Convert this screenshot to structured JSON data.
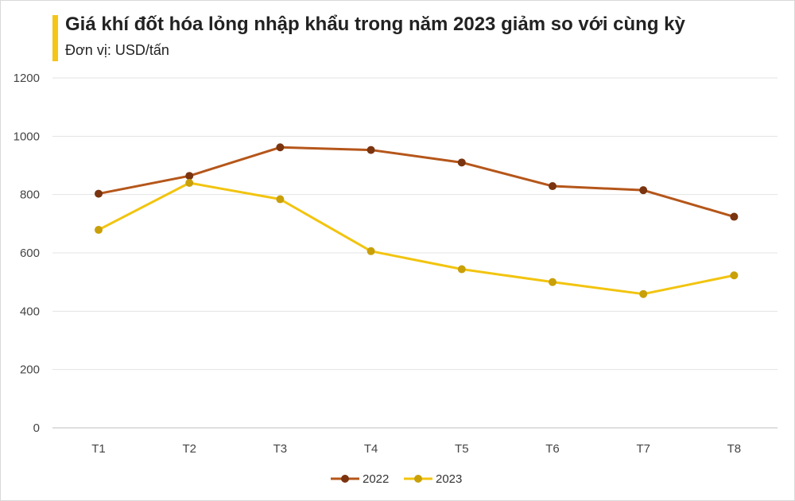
{
  "header": {
    "title": "Giá khí đốt hóa lỏng nhập khẩu trong năm 2023 giảm so với cùng kỳ",
    "subtitle": "Đơn vị: USD/tấn",
    "accent_color": "#f5c518"
  },
  "chart_data": {
    "type": "line",
    "title": "Giá khí đốt hóa lỏng nhập khẩu trong năm 2023 giảm so với cùng kỳ",
    "subtitle": "Đơn vị: USD/tấn",
    "xlabel": "",
    "ylabel": "",
    "categories": [
      "T1",
      "T2",
      "T3",
      "T4",
      "T5",
      "T6",
      "T7",
      "T8"
    ],
    "ylim": [
      0,
      1200
    ],
    "yticks": [
      0,
      200,
      400,
      600,
      800,
      1000,
      1200
    ],
    "grid": true,
    "legend": "bottom",
    "series": [
      {
        "name": "2022",
        "color": "#b5561a",
        "marker_color": "#7a3410",
        "values": [
          803,
          864,
          962,
          953,
          910,
          829,
          815,
          724
        ]
      },
      {
        "name": "2023",
        "color": "#f2c40f",
        "marker_color": "#c9a00a",
        "values": [
          679,
          840,
          784,
          606,
          544,
          500,
          459,
          523
        ]
      }
    ]
  }
}
